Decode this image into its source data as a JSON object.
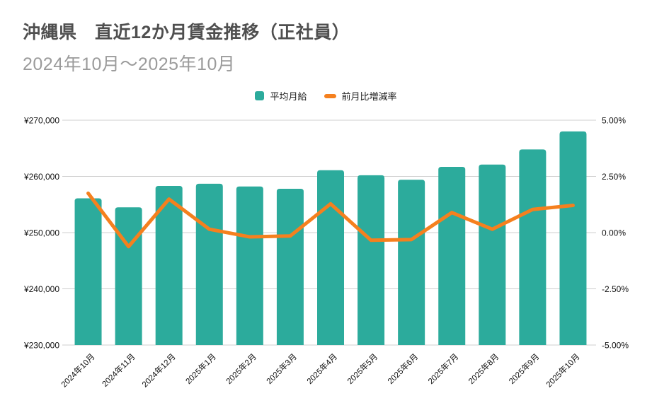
{
  "header": {
    "title": "沖縄県　直近12か月賃金推移（正社員）",
    "subtitle": "2024年10月～2025年10月"
  },
  "legend": {
    "bar_label": "平均月給",
    "line_label": "前月比増減率"
  },
  "colors": {
    "bar": "#2cab9c",
    "line": "#f5801e",
    "grid": "#cfcfcf",
    "tick": "#111111",
    "title": "#4f4f4f",
    "subtitle": "#9b9b9b"
  },
  "chart_data": {
    "type": "bar",
    "subtype": "combo-bar-line",
    "title": "沖縄県　直近12か月賃金推移（正社員）",
    "subtitle": "2024年10月～2025年10月",
    "categories": [
      "2024年10月",
      "2024年11月",
      "2024年12月",
      "2025年1月",
      "2025年2月",
      "2025年3月",
      "2025年4月",
      "2025年5月",
      "2025年6月",
      "2025年7月",
      "2025年8月",
      "2025年9月",
      "2025年10月"
    ],
    "series": [
      {
        "name": "平均月給",
        "type": "bar",
        "axis": "left",
        "unit": "JPY",
        "values": [
          256100,
          254500,
          258300,
          258700,
          258200,
          257800,
          261100,
          260200,
          259400,
          261700,
          262100,
          264800,
          268000
        ]
      },
      {
        "name": "前月比増減率",
        "type": "line",
        "axis": "right",
        "unit": "%",
        "values": [
          1.75,
          -0.62,
          1.49,
          0.15,
          -0.19,
          -0.15,
          1.28,
          -0.34,
          -0.31,
          0.89,
          0.15,
          1.03,
          1.21
        ]
      }
    ],
    "left_axis": {
      "min": 230000,
      "max": 270000,
      "ticks": [
        "¥270,000",
        "¥260,000",
        "¥250,000",
        "¥240,000",
        "¥230,000"
      ]
    },
    "right_axis": {
      "min": -5,
      "max": 5,
      "ticks": [
        "5.00%",
        "2.50%",
        "0.00%",
        "-2.50%",
        "-5.00%"
      ]
    },
    "grid": true,
    "legend_position": "top"
  }
}
